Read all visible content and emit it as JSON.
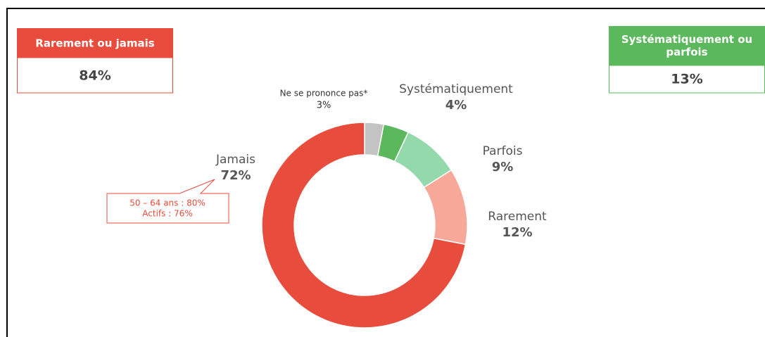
{
  "chart_data": {
    "type": "donut",
    "categories": [
      "Ne se prononce pas*",
      "Systématiquement",
      "Parfois",
      "Rarement",
      "Jamais"
    ],
    "values": [
      3,
      4,
      9,
      12,
      72
    ],
    "value_labels": [
      "3%",
      "4%",
      "9%",
      "12%",
      "72%"
    ],
    "colors": [
      "#c3c3c3",
      "#5cb85c",
      "#93d9ac",
      "#f8a898",
      "#e84c3d"
    ],
    "summary": [
      {
        "label": "Rarement ou jamais",
        "value_label": "84%",
        "color": "#e84c3d"
      },
      {
        "label": "Systématiquement ou parfois",
        "value_label": "13%",
        "color": "#5cb85c"
      }
    ],
    "annotation": [
      "50 – 64 ans : 80%",
      "Actifs : 76%"
    ]
  }
}
